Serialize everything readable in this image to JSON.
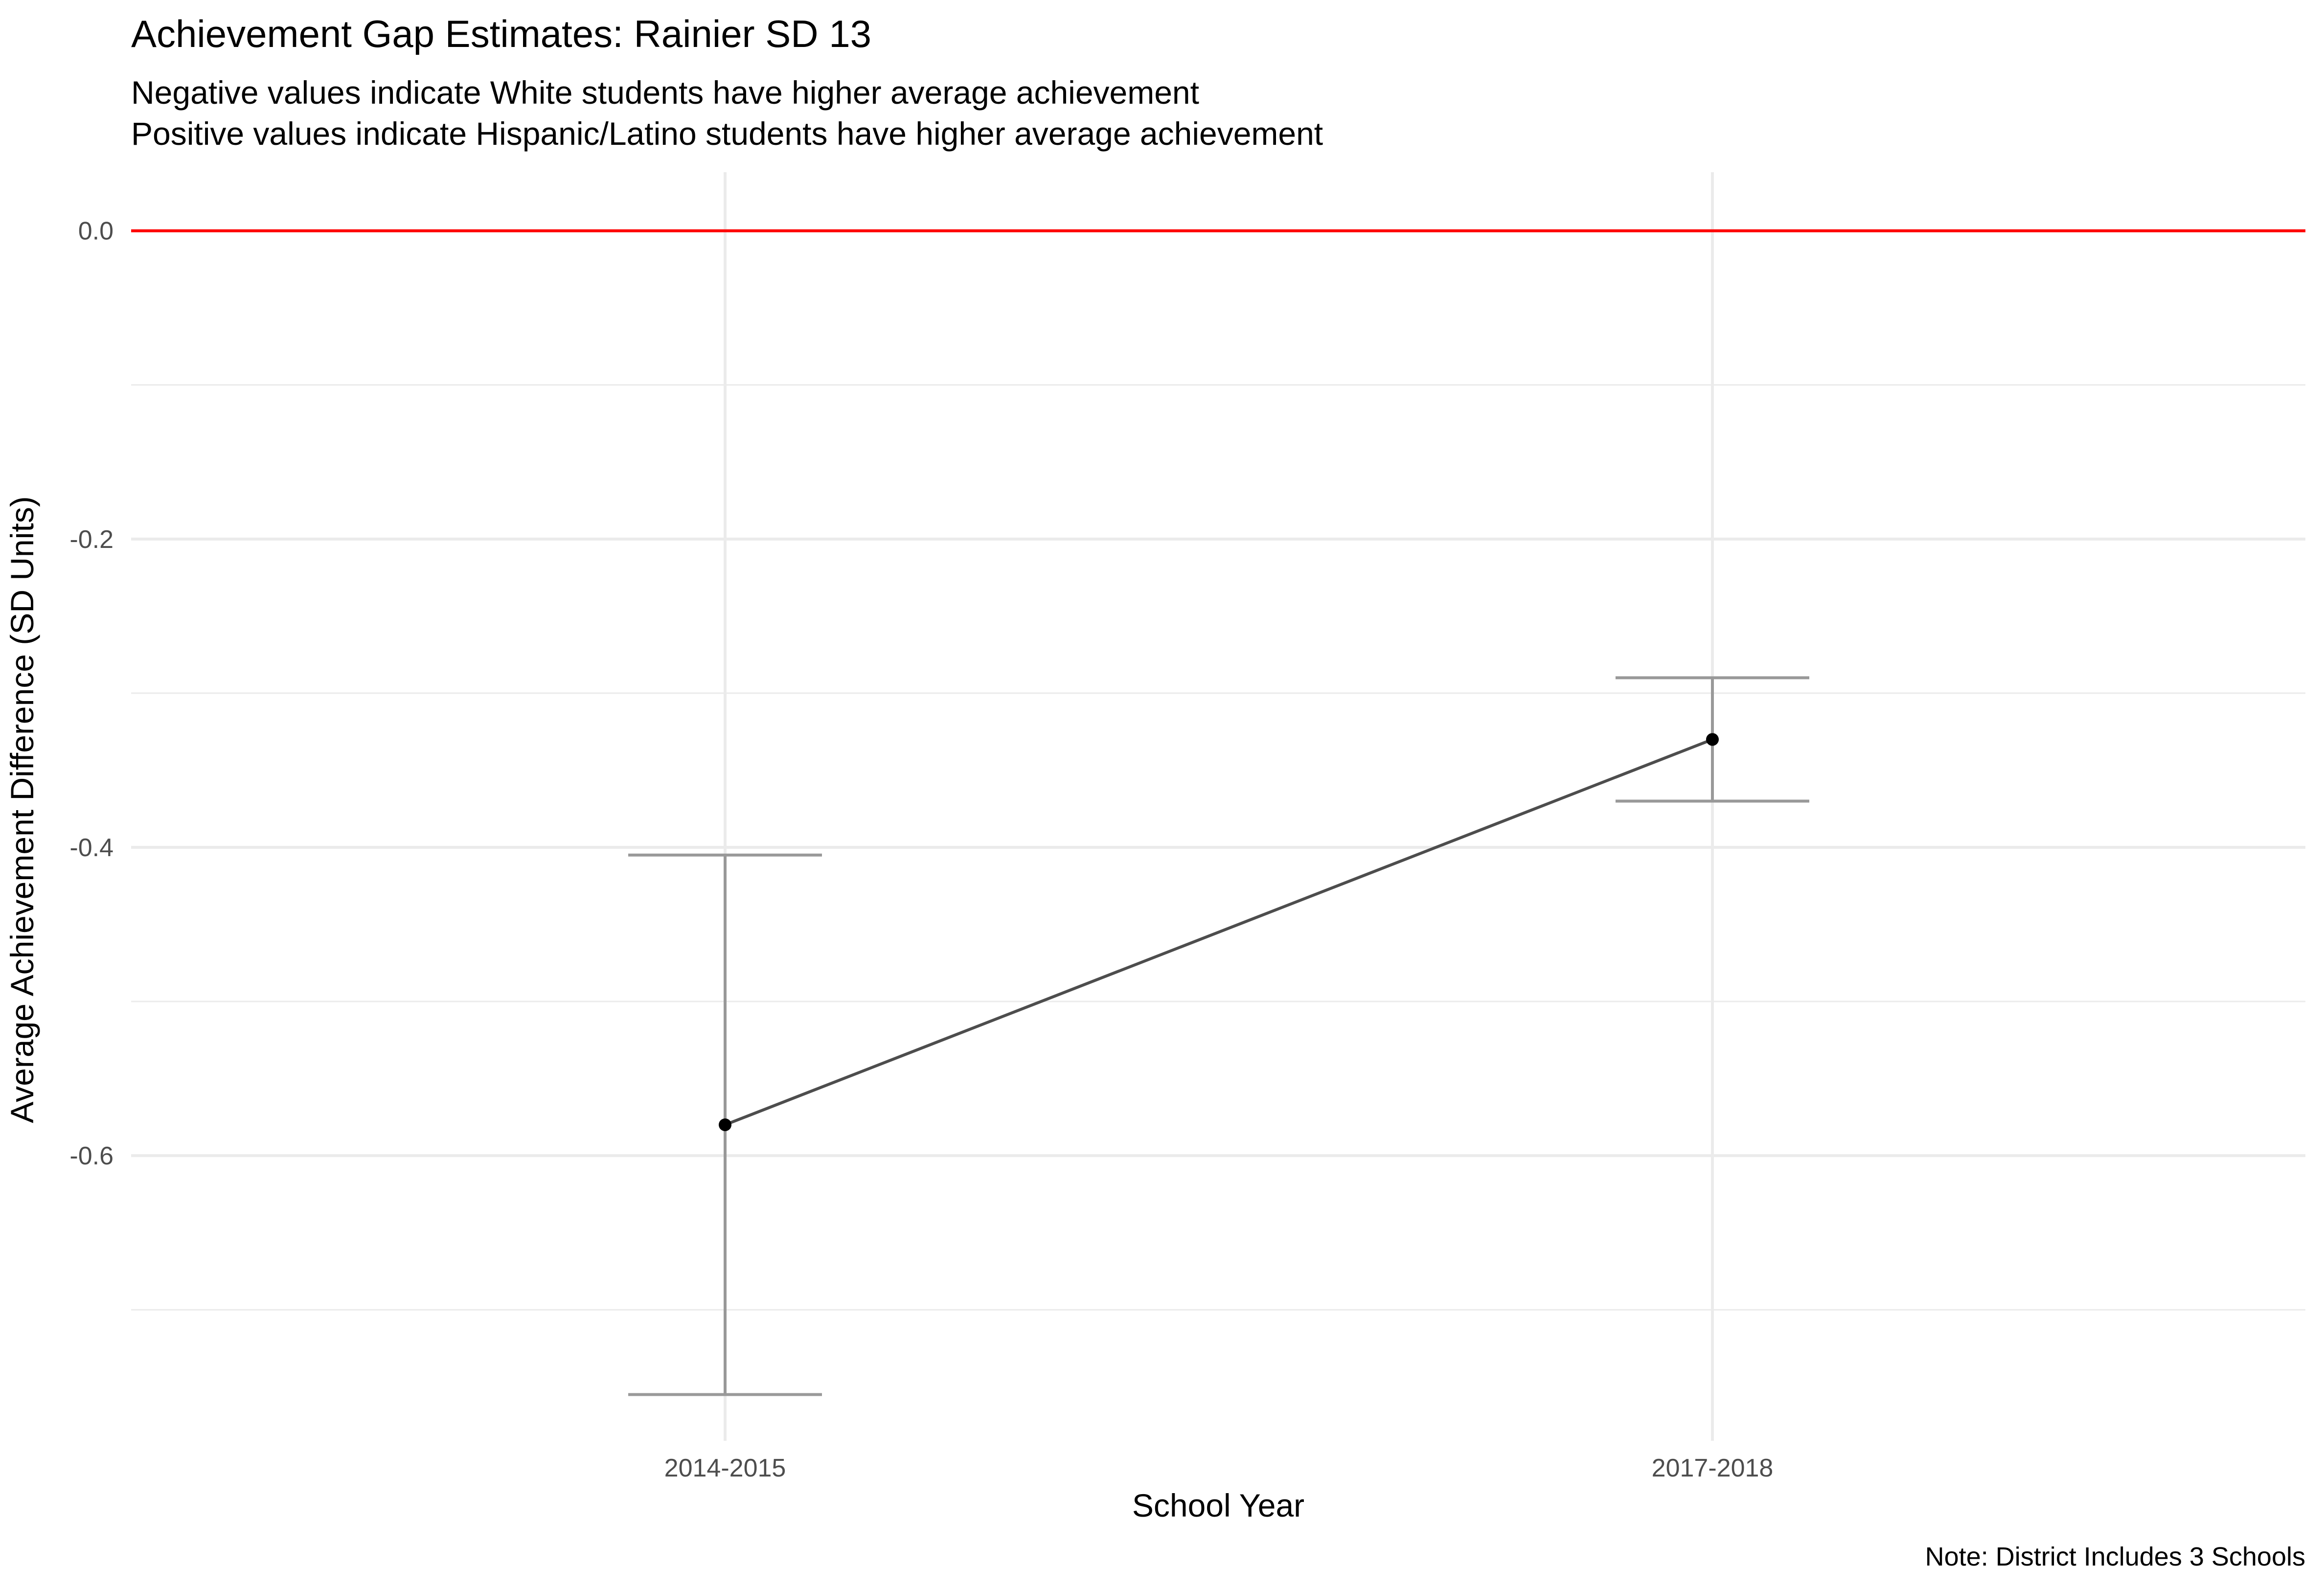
{
  "chart_data": {
    "type": "line",
    "title": "Achievement Gap Estimates: Rainier SD 13",
    "subtitle_lines": [
      "Negative values indicate White students have higher average achievement",
      "Positive values indicate Hispanic/Latino students have higher average achievement"
    ],
    "xlabel": "School Year",
    "ylabel": "Average Achievement Difference (SD Units)",
    "caption": "Note: District Includes 3 Schools",
    "categories": [
      "2014-2015",
      "2017-2018"
    ],
    "series": [
      {
        "values": [
          -0.58,
          -0.33
        ],
        "lower": [
          -0.755,
          -0.37
        ],
        "upper": [
          -0.405,
          -0.29
        ]
      }
    ],
    "reference_line": {
      "y": 0.0,
      "color": "#ff0000"
    },
    "y_ticks": [
      0.0,
      -0.2,
      -0.4,
      -0.6
    ],
    "y_tick_labels": [
      "0.0",
      "-0.2",
      "-0.4",
      "-0.6"
    ],
    "ylim": [
      -0.785,
      0.038
    ],
    "grid": true,
    "legend": "none",
    "colors": {
      "line": "#4d4d4d",
      "point": "#000000",
      "errorbar": "#999999",
      "grid": "#ebebeb"
    }
  }
}
